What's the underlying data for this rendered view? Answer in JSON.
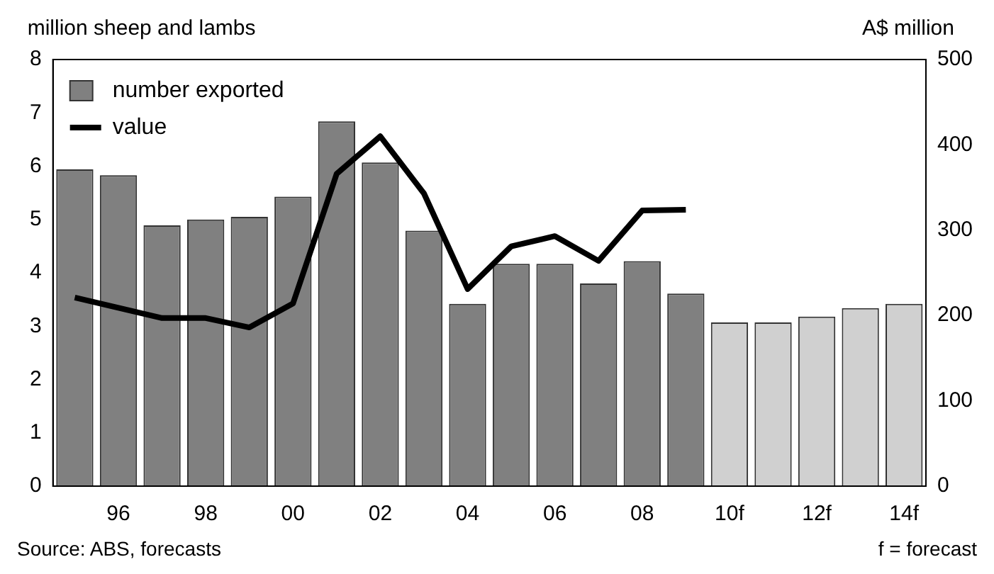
{
  "chart_data": {
    "type": "bar",
    "ylabel": "million sheep and lambs",
    "y2label": "A$ million",
    "categories": [
      null,
      "96",
      null,
      "98",
      null,
      "00",
      null,
      "02",
      null,
      "04",
      null,
      "06",
      null,
      "08",
      null,
      "10f",
      null,
      "12f",
      null,
      "14f"
    ],
    "series": [
      {
        "name": "number exported",
        "color": "#808080",
        "colors": [
          "#808080",
          "#808080",
          "#808080",
          "#808080",
          "#808080",
          "#808080",
          "#808080",
          "#808080",
          "#808080",
          "#808080",
          "#808080",
          "#808080",
          "#808080",
          "#808080",
          "#808080",
          "#d0d0d0",
          "#d0d0d0",
          "#d0d0d0",
          "#d0d0d0",
          "#d0d0d0"
        ],
        "values": [
          5.94,
          5.83,
          4.89,
          5.0,
          5.05,
          5.43,
          6.84,
          6.07,
          4.79,
          3.42,
          4.17,
          4.17,
          3.8,
          4.22,
          3.61,
          3.07,
          3.07,
          3.18,
          3.34,
          3.42
        ]
      },
      {
        "name": "value",
        "type": "line",
        "axis": "y2",
        "color": "#000000",
        "values": [
          221,
          209,
          197,
          197,
          186,
          214,
          366,
          410,
          343,
          231,
          281,
          293,
          264,
          323,
          324,
          null,
          null,
          null,
          null,
          null
        ]
      }
    ],
    "ylim": [
      0,
      8
    ],
    "yticks": [
      0,
      1,
      2,
      3,
      4,
      5,
      6,
      7,
      8
    ],
    "y2lim": [
      0,
      500
    ],
    "y2ticks": [
      0,
      100,
      200,
      300,
      400,
      500
    ],
    "grid": false,
    "legend": "top left",
    "marker": "none",
    "annotations": [
      "Source: ABS, forecasts",
      "f = forecast"
    ]
  }
}
